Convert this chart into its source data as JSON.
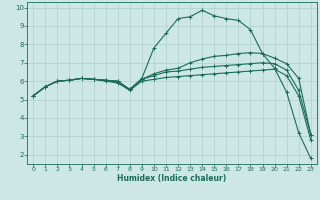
{
  "xlabel": "Humidex (Indice chaleur)",
  "bg_color": "#cde8e4",
  "grid_color": "#afd0cb",
  "line_color": "#1a6b5a",
  "xlim": [
    -0.5,
    23.5
  ],
  "ylim": [
    1.5,
    10.3
  ],
  "yticks": [
    2,
    3,
    4,
    5,
    6,
    7,
    8,
    9,
    10
  ],
  "xticks": [
    0,
    1,
    2,
    3,
    4,
    5,
    6,
    7,
    8,
    9,
    10,
    11,
    12,
    13,
    14,
    15,
    16,
    17,
    18,
    19,
    20,
    21,
    22,
    23
  ],
  "series": [
    {
      "x": [
        0,
        1,
        2,
        3,
        4,
        5,
        6,
        7,
        8,
        9,
        10,
        11,
        12,
        13,
        14,
        15,
        16,
        17,
        18,
        19,
        20,
        21,
        22,
        23
      ],
      "y": [
        5.2,
        5.7,
        6.0,
        6.05,
        6.15,
        6.1,
        6.05,
        6.0,
        5.55,
        6.15,
        7.8,
        8.6,
        9.4,
        9.5,
        9.85,
        9.55,
        9.4,
        9.3,
        8.8,
        7.5,
        6.7,
        5.4,
        3.2,
        1.8
      ]
    },
    {
      "x": [
        0,
        1,
        2,
        3,
        4,
        5,
        6,
        7,
        8,
        9,
        10,
        11,
        12,
        13,
        14,
        15,
        16,
        17,
        18,
        19,
        20,
        21,
        22,
        23
      ],
      "y": [
        5.2,
        5.7,
        6.0,
        6.05,
        6.15,
        6.1,
        6.05,
        6.0,
        5.55,
        6.1,
        6.4,
        6.6,
        6.7,
        7.0,
        7.2,
        7.35,
        7.4,
        7.5,
        7.55,
        7.5,
        7.25,
        6.95,
        6.15,
        3.1
      ]
    },
    {
      "x": [
        0,
        1,
        2,
        3,
        4,
        5,
        6,
        7,
        8,
        9,
        10,
        11,
        12,
        13,
        14,
        15,
        16,
        17,
        18,
        19,
        20,
        21,
        22,
        23
      ],
      "y": [
        5.2,
        5.7,
        6.0,
        6.05,
        6.15,
        6.1,
        6.05,
        5.95,
        5.55,
        6.1,
        6.3,
        6.5,
        6.55,
        6.65,
        6.75,
        6.8,
        6.85,
        6.9,
        6.95,
        7.0,
        6.95,
        6.6,
        5.5,
        3.1
      ]
    },
    {
      "x": [
        0,
        1,
        2,
        3,
        4,
        5,
        6,
        7,
        8,
        9,
        10,
        11,
        12,
        13,
        14,
        15,
        16,
        17,
        18,
        19,
        20,
        21,
        22,
        23
      ],
      "y": [
        5.2,
        5.7,
        6.0,
        6.05,
        6.15,
        6.1,
        6.0,
        5.9,
        5.5,
        6.0,
        6.1,
        6.2,
        6.25,
        6.3,
        6.35,
        6.4,
        6.45,
        6.5,
        6.55,
        6.6,
        6.65,
        6.3,
        5.2,
        2.8
      ]
    }
  ]
}
